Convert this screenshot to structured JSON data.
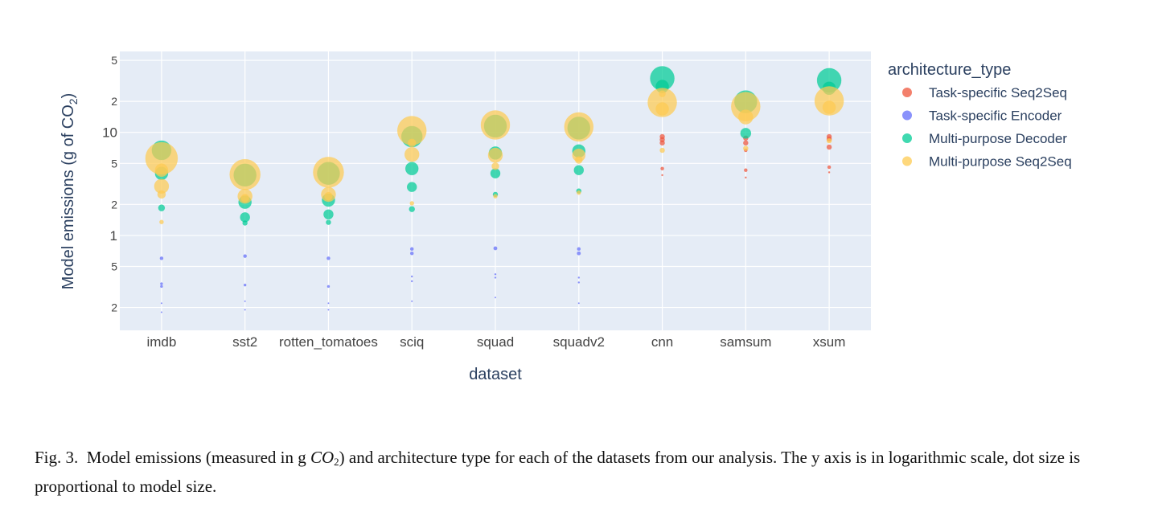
{
  "chart_data": {
    "type": "scatter",
    "subtype": "bubble-strip",
    "title": "",
    "xlabel": "dataset",
    "ylabel_prefix": "Model emissions (g of CO",
    "ylabel_sub": "2",
    "ylabel_suffix": ")",
    "yscale": "log",
    "ylim": [
      0.12,
      61
    ],
    "grid": true,
    "legend_title": "architecture_type",
    "legend_position": "right",
    "categories": [
      "imdb",
      "sst2",
      "rotten_tomatoes",
      "sciq",
      "squad",
      "squadv2",
      "cnn",
      "samsum",
      "xsum"
    ],
    "y_ticks": [
      {
        "value": 50,
        "label": "5"
      },
      {
        "value": 20,
        "label": "2"
      },
      {
        "value": 10,
        "label": "10"
      },
      {
        "value": 5,
        "label": "5"
      },
      {
        "value": 2,
        "label": "2"
      },
      {
        "value": 1,
        "label": "1"
      },
      {
        "value": 0.5,
        "label": "5"
      },
      {
        "value": 0.2,
        "label": "2"
      }
    ],
    "series": [
      {
        "name": "Task-specific Seq2Seq",
        "color": "#ef553b",
        "points": [
          {
            "x": "cnn",
            "y": 9.1,
            "size": 3
          },
          {
            "x": "cnn",
            "y": 8.5,
            "size": 3
          },
          {
            "x": "cnn",
            "y": 7.9,
            "size": 3
          },
          {
            "x": "cnn",
            "y": 4.45,
            "size": 2
          },
          {
            "x": "cnn",
            "y": 3.85,
            "size": 1
          },
          {
            "x": "samsum",
            "y": 8.8,
            "size": 3
          },
          {
            "x": "samsum",
            "y": 7.9,
            "size": 3
          },
          {
            "x": "samsum",
            "y": 6.7,
            "size": 2
          },
          {
            "x": "samsum",
            "y": 4.3,
            "size": 2
          },
          {
            "x": "samsum",
            "y": 3.65,
            "size": 1
          },
          {
            "x": "xsum",
            "y": 9.1,
            "size": 3
          },
          {
            "x": "xsum",
            "y": 8.6,
            "size": 3
          },
          {
            "x": "xsum",
            "y": 7.2,
            "size": 3
          },
          {
            "x": "xsum",
            "y": 4.6,
            "size": 2
          },
          {
            "x": "xsum",
            "y": 4.1,
            "size": 1
          }
        ]
      },
      {
        "name": "Task-specific Encoder",
        "color": "#636efa",
        "points": [
          {
            "x": "imdb",
            "y": 0.6,
            "size": 2
          },
          {
            "x": "imdb",
            "y": 0.34,
            "size": 1.5
          },
          {
            "x": "imdb",
            "y": 0.32,
            "size": 1.5
          },
          {
            "x": "imdb",
            "y": 0.22,
            "size": 0.5
          },
          {
            "x": "imdb",
            "y": 0.18,
            "size": 0.5
          },
          {
            "x": "sst2",
            "y": 0.63,
            "size": 2
          },
          {
            "x": "sst2",
            "y": 0.33,
            "size": 1.5
          },
          {
            "x": "sst2",
            "y": 0.23,
            "size": 0.5
          },
          {
            "x": "sst2",
            "y": 0.19,
            "size": 0.5
          },
          {
            "x": "rotten_tomatoes",
            "y": 0.6,
            "size": 2
          },
          {
            "x": "rotten_tomatoes",
            "y": 0.32,
            "size": 1.5
          },
          {
            "x": "rotten_tomatoes",
            "y": 0.22,
            "size": 0.5
          },
          {
            "x": "rotten_tomatoes",
            "y": 0.19,
            "size": 0.5
          },
          {
            "x": "sciq",
            "y": 0.74,
            "size": 2
          },
          {
            "x": "sciq",
            "y": 0.67,
            "size": 2
          },
          {
            "x": "sciq",
            "y": 0.4,
            "size": 1
          },
          {
            "x": "sciq",
            "y": 0.36,
            "size": 1
          },
          {
            "x": "sciq",
            "y": 0.23,
            "size": 0.7
          },
          {
            "x": "squad",
            "y": 0.75,
            "size": 2.2
          },
          {
            "x": "squad",
            "y": 0.42,
            "size": 1
          },
          {
            "x": "squad",
            "y": 0.39,
            "size": 1
          },
          {
            "x": "squad",
            "y": 0.25,
            "size": 0.7
          },
          {
            "x": "squadv2",
            "y": 0.74,
            "size": 2
          },
          {
            "x": "squadv2",
            "y": 0.67,
            "size": 2.2
          },
          {
            "x": "squadv2",
            "y": 0.39,
            "size": 1
          },
          {
            "x": "squadv2",
            "y": 0.35,
            "size": 1
          },
          {
            "x": "squadv2",
            "y": 0.22,
            "size": 0.7
          }
        ]
      },
      {
        "name": "Multi-purpose Decoder",
        "color": "#00cc96",
        "points": [
          {
            "x": "imdb",
            "y": 6.7,
            "size": 12
          },
          {
            "x": "imdb",
            "y": 4.0,
            "size": 8
          },
          {
            "x": "imdb",
            "y": 1.85,
            "size": 4
          },
          {
            "x": "sst2",
            "y": 3.85,
            "size": 14
          },
          {
            "x": "sst2",
            "y": 2.1,
            "size": 8
          },
          {
            "x": "sst2",
            "y": 1.5,
            "size": 6
          },
          {
            "x": "sst2",
            "y": 1.32,
            "size": 3
          },
          {
            "x": "rotten_tomatoes",
            "y": 4.0,
            "size": 14
          },
          {
            "x": "rotten_tomatoes",
            "y": 2.2,
            "size": 8
          },
          {
            "x": "rotten_tomatoes",
            "y": 1.6,
            "size": 6
          },
          {
            "x": "rotten_tomatoes",
            "y": 1.34,
            "size": 3
          },
          {
            "x": "sciq",
            "y": 9.1,
            "size": 13
          },
          {
            "x": "sciq",
            "y": 4.45,
            "size": 8
          },
          {
            "x": "sciq",
            "y": 2.95,
            "size": 6
          },
          {
            "x": "sciq",
            "y": 1.8,
            "size": 3.5
          },
          {
            "x": "squad",
            "y": 11.5,
            "size": 14
          },
          {
            "x": "squad",
            "y": 6.3,
            "size": 8
          },
          {
            "x": "squad",
            "y": 4.0,
            "size": 6
          },
          {
            "x": "squad",
            "y": 2.5,
            "size": 3
          },
          {
            "x": "squadv2",
            "y": 11.0,
            "size": 14
          },
          {
            "x": "squadv2",
            "y": 6.6,
            "size": 8
          },
          {
            "x": "squadv2",
            "y": 4.3,
            "size": 6
          },
          {
            "x": "squadv2",
            "y": 2.7,
            "size": 3
          },
          {
            "x": "cnn",
            "y": 33.4,
            "size": 15
          },
          {
            "x": "cnn",
            "y": 27.9,
            "size": 8
          },
          {
            "x": "samsum",
            "y": 19.8,
            "size": 14
          },
          {
            "x": "samsum",
            "y": 9.8,
            "size": 6.5
          },
          {
            "x": "xsum",
            "y": 32.0,
            "size": 15
          },
          {
            "x": "xsum",
            "y": 26.8,
            "size": 8
          }
        ]
      },
      {
        "name": "Multi-purpose Seq2Seq",
        "color": "#fecb52",
        "points": [
          {
            "x": "imdb",
            "y": 5.6,
            "size": 20
          },
          {
            "x": "imdb",
            "y": 4.3,
            "size": 8
          },
          {
            "x": "imdb",
            "y": 3.0,
            "size": 9
          },
          {
            "x": "imdb",
            "y": 2.5,
            "size": 5
          },
          {
            "x": "imdb",
            "y": 1.35,
            "size": 2.5
          },
          {
            "x": "sst2",
            "y": 3.9,
            "size": 19
          },
          {
            "x": "sst2",
            "y": 2.4,
            "size": 9
          },
          {
            "x": "sst2",
            "y": 2.3,
            "size": 5
          },
          {
            "x": "rotten_tomatoes",
            "y": 4.1,
            "size": 19
          },
          {
            "x": "rotten_tomatoes",
            "y": 2.5,
            "size": 9
          },
          {
            "x": "rotten_tomatoes",
            "y": 2.4,
            "size": 5
          },
          {
            "x": "sciq",
            "y": 10.4,
            "size": 18
          },
          {
            "x": "sciq",
            "y": 7.9,
            "size": 5
          },
          {
            "x": "sciq",
            "y": 6.1,
            "size": 9
          },
          {
            "x": "sciq",
            "y": 2.05,
            "size": 2.5
          },
          {
            "x": "squad",
            "y": 11.8,
            "size": 18
          },
          {
            "x": "squad",
            "y": 6.0,
            "size": 9
          },
          {
            "x": "squad",
            "y": 4.7,
            "size": 4.5
          },
          {
            "x": "squad",
            "y": 2.4,
            "size": 2.5
          },
          {
            "x": "squadv2",
            "y": 11.3,
            "size": 18
          },
          {
            "x": "squadv2",
            "y": 6.0,
            "size": 8
          },
          {
            "x": "squadv2",
            "y": 5.4,
            "size": 4.5
          },
          {
            "x": "squadv2",
            "y": 2.6,
            "size": 2.5
          },
          {
            "x": "cnn",
            "y": 23.7,
            "size": 4
          },
          {
            "x": "cnn",
            "y": 19.5,
            "size": 18
          },
          {
            "x": "cnn",
            "y": 16.9,
            "size": 8
          },
          {
            "x": "cnn",
            "y": 6.7,
            "size": 3
          },
          {
            "x": "samsum",
            "y": 17.8,
            "size": 18
          },
          {
            "x": "samsum",
            "y": 14.1,
            "size": 9
          },
          {
            "x": "samsum",
            "y": 7.0,
            "size": 3
          },
          {
            "x": "xsum",
            "y": 20.2,
            "size": 18
          },
          {
            "x": "xsum",
            "y": 17.5,
            "size": 8
          },
          {
            "x": "xsum",
            "y": 8.3,
            "size": 3
          }
        ]
      }
    ]
  },
  "caption": {
    "label": "Fig. 3.",
    "text_before": "Model emissions (measured in g ",
    "co_main": "CO",
    "co_sub": "2",
    "text_after": ") and architecture type for each of the datasets from our analysis. The y axis is in logarithmic scale, dot size is proportional to model size."
  }
}
